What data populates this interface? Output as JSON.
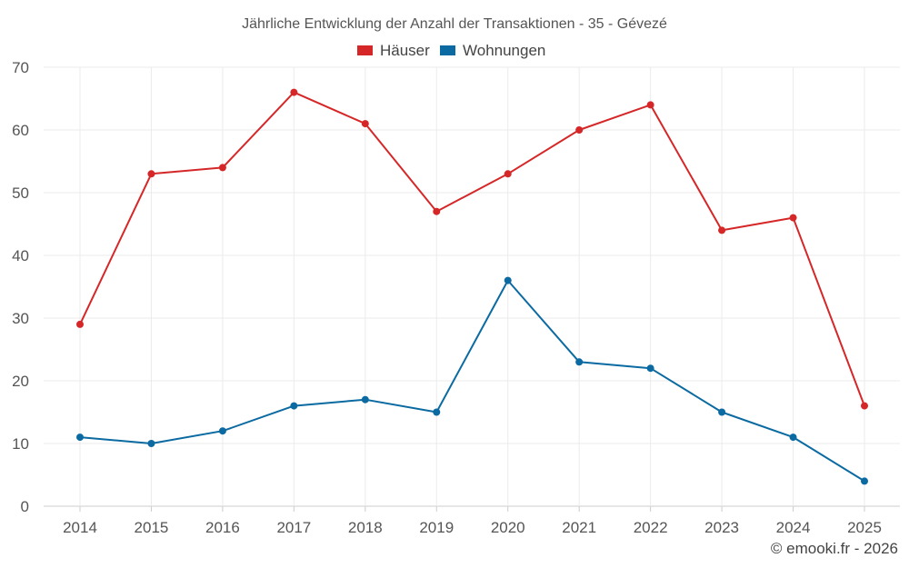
{
  "chart_data": {
    "type": "line",
    "title": "Jährliche Entwicklung der Anzahl der Transaktionen - 35 - Gévezé",
    "categories": [
      "2014",
      "2015",
      "2016",
      "2017",
      "2018",
      "2019",
      "2020",
      "2021",
      "2022",
      "2023",
      "2024",
      "2025"
    ],
    "series": [
      {
        "name": "Häuser",
        "color": "#d62728",
        "values": [
          29,
          53,
          54,
          66,
          61,
          47,
          53,
          60,
          64,
          44,
          46,
          16
        ]
      },
      {
        "name": "Wohnungen",
        "color": "#0a6aa1",
        "values": [
          11,
          10,
          12,
          16,
          17,
          15,
          36,
          23,
          22,
          15,
          11,
          4
        ]
      }
    ],
    "ylim": [
      0,
      70
    ],
    "yticks": [
      0,
      10,
      20,
      30,
      40,
      50,
      60,
      70
    ],
    "xlabel": "",
    "ylabel": "",
    "grid": true,
    "legend": "top-center"
  },
  "credit": "© emooki.fr - 2026"
}
